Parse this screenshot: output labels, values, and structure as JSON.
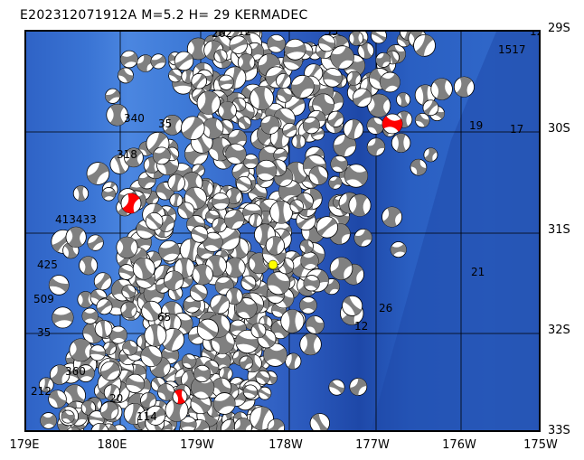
{
  "title": "E202312071912A M=5.2 H= 29 KERMADEC",
  "lat_labels": [
    "29S",
    "30S",
    "31S",
    "32S",
    "33S"
  ],
  "lon_labels": [
    "179E",
    "180E",
    "179W",
    "178W",
    "177W",
    "176W",
    "175W"
  ],
  "event_labels": [
    "262",
    "12",
    "55",
    "12",
    "1517",
    "340",
    "35",
    "318",
    "413433",
    "425",
    "509",
    "35",
    "360",
    "212",
    "20",
    "114",
    "65",
    "21",
    "26",
    "12",
    "17",
    "19"
  ],
  "colors": {
    "ocean": "#2f63c6",
    "deep": "#1e48a8",
    "beachball_fill": "#808080",
    "highlight": "#ff0000",
    "epicenter": "#ffff00"
  }
}
